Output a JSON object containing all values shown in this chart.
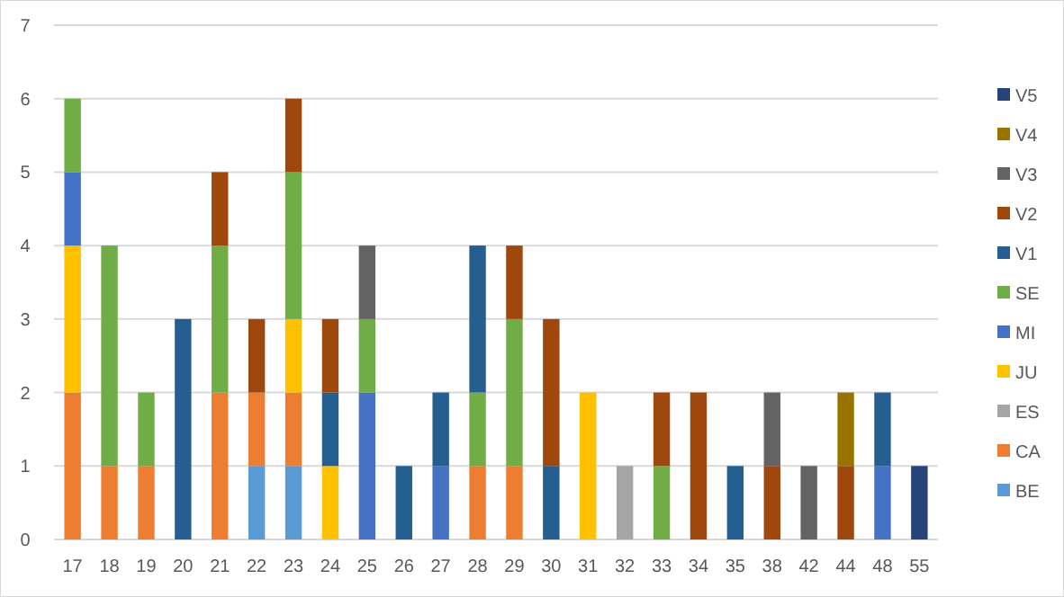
{
  "chart_data": {
    "type": "bar",
    "stacked": true,
    "categories": [
      "17",
      "18",
      "19",
      "20",
      "21",
      "22",
      "23",
      "24",
      "25",
      "26",
      "27",
      "28",
      "29",
      "30",
      "31",
      "32",
      "33",
      "34",
      "35",
      "38",
      "42",
      "44",
      "48",
      "55"
    ],
    "series": [
      {
        "name": "BE",
        "color": "#5b9bd5",
        "values": [
          0,
          0,
          0,
          0,
          0,
          1,
          1,
          0,
          0,
          0,
          0,
          0,
          0,
          0,
          0,
          0,
          0,
          0,
          0,
          0,
          0,
          0,
          0,
          0
        ]
      },
      {
        "name": "CA",
        "color": "#ed7d31",
        "values": [
          2,
          1,
          1,
          0,
          2,
          1,
          1,
          0,
          0,
          0,
          0,
          1,
          1,
          0,
          0,
          0,
          0,
          0,
          0,
          0,
          0,
          0,
          0,
          0
        ]
      },
      {
        "name": "ES",
        "color": "#a5a5a5",
        "values": [
          0,
          0,
          0,
          0,
          0,
          0,
          0,
          0,
          0,
          0,
          0,
          0,
          0,
          0,
          0,
          1,
          0,
          0,
          0,
          0,
          0,
          0,
          0,
          0
        ]
      },
      {
        "name": "JU",
        "color": "#ffc000",
        "values": [
          2,
          0,
          0,
          0,
          0,
          0,
          1,
          1,
          0,
          0,
          0,
          0,
          0,
          0,
          2,
          0,
          0,
          0,
          0,
          0,
          0,
          0,
          0,
          0
        ]
      },
      {
        "name": "MI",
        "color": "#4472c4",
        "values": [
          1,
          0,
          0,
          0,
          0,
          0,
          0,
          0,
          2,
          0,
          1,
          0,
          0,
          0,
          0,
          0,
          0,
          0,
          0,
          0,
          0,
          0,
          1,
          0
        ]
      },
      {
        "name": "SE",
        "color": "#70ad47",
        "values": [
          1,
          3,
          1,
          0,
          2,
          0,
          2,
          0,
          1,
          0,
          0,
          1,
          2,
          0,
          0,
          0,
          1,
          0,
          0,
          0,
          0,
          0,
          0,
          0
        ]
      },
      {
        "name": "V1",
        "color": "#255e91",
        "values": [
          0,
          0,
          0,
          3,
          0,
          0,
          0,
          1,
          0,
          1,
          1,
          2,
          0,
          1,
          0,
          0,
          0,
          0,
          1,
          0,
          0,
          0,
          1,
          0
        ]
      },
      {
        "name": "V2",
        "color": "#9e480e",
        "values": [
          0,
          0,
          0,
          0,
          1,
          1,
          1,
          1,
          0,
          0,
          0,
          0,
          1,
          2,
          0,
          0,
          1,
          2,
          0,
          1,
          0,
          1,
          0,
          0
        ]
      },
      {
        "name": "V3",
        "color": "#636363",
        "values": [
          0,
          0,
          0,
          0,
          0,
          0,
          0,
          0,
          1,
          0,
          0,
          0,
          0,
          0,
          0,
          0,
          0,
          0,
          0,
          1,
          1,
          0,
          0,
          0
        ]
      },
      {
        "name": "V4",
        "color": "#997300",
        "values": [
          0,
          0,
          0,
          0,
          0,
          0,
          0,
          0,
          0,
          0,
          0,
          0,
          0,
          0,
          0,
          0,
          0,
          0,
          0,
          0,
          0,
          1,
          0,
          0
        ]
      },
      {
        "name": "V5",
        "color": "#264478",
        "values": [
          0,
          0,
          0,
          0,
          0,
          0,
          0,
          0,
          0,
          0,
          0,
          0,
          0,
          0,
          0,
          0,
          0,
          0,
          0,
          0,
          0,
          0,
          0,
          1
        ]
      }
    ],
    "ylim": [
      0,
      7
    ],
    "yticks": [
      0,
      1,
      2,
      3,
      4,
      5,
      6,
      7
    ],
    "grid": "y",
    "legend": "right"
  }
}
